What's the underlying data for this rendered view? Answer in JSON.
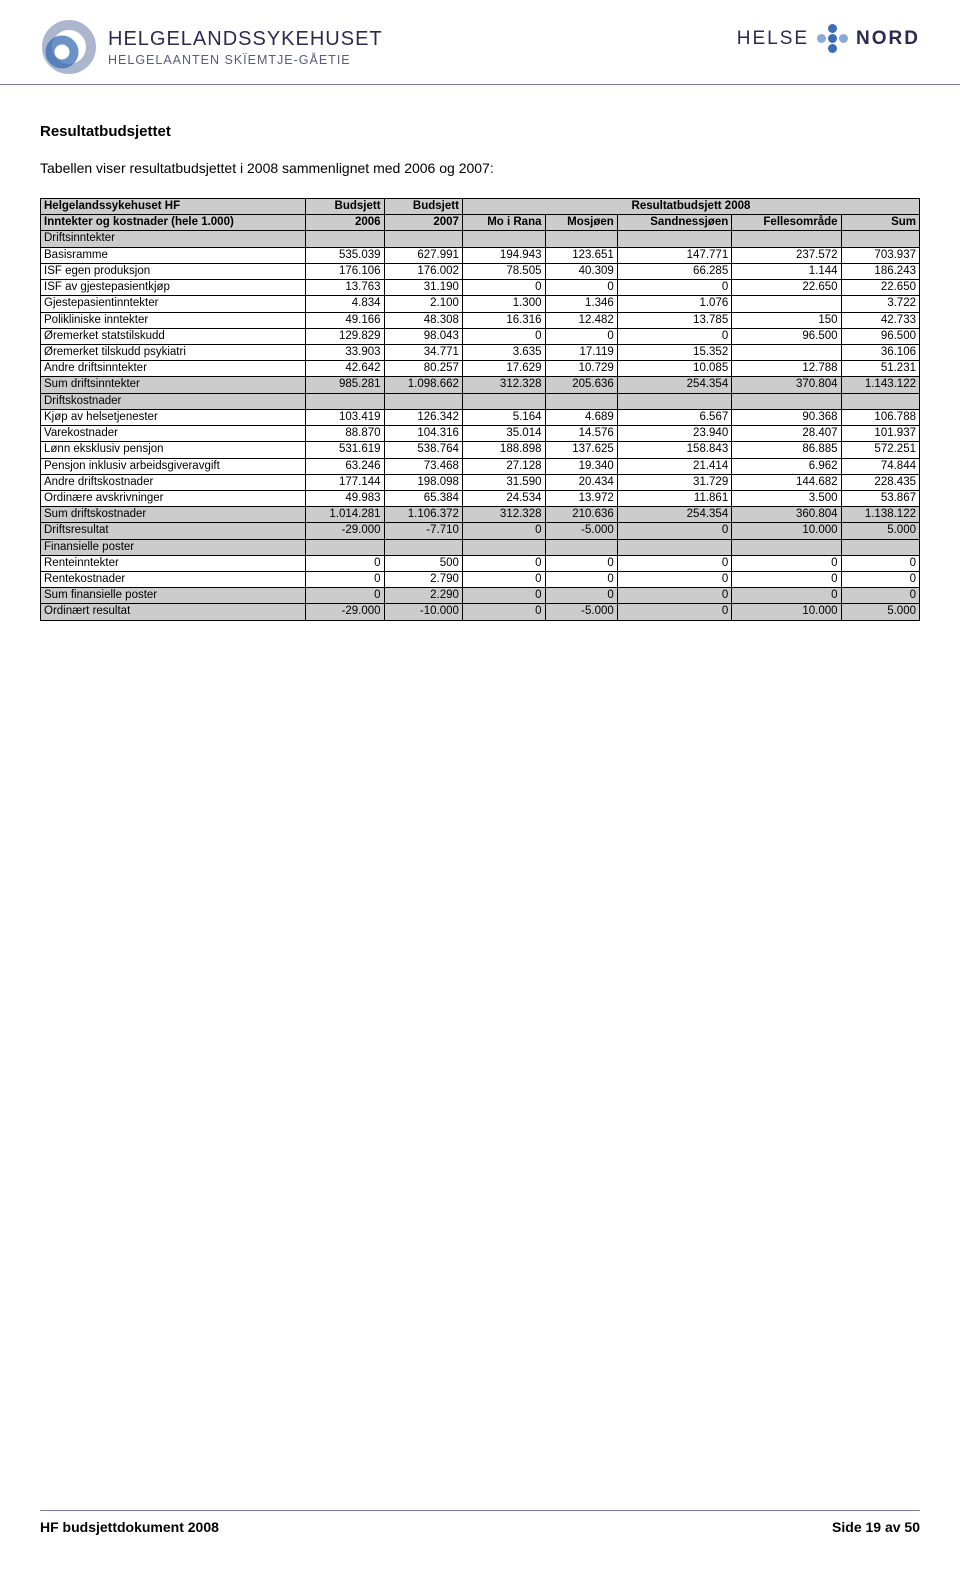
{
  "header": {
    "logo_title": "HELGELANDSSYKEHUSET",
    "logo_sub": "HELGELAANTEN SKÏEMTJE-GÅETIE",
    "helse": "HELSE",
    "nord": "NORD"
  },
  "heading": "Resultatbudsjettet",
  "intro": "Tabellen viser resultatbudsjettet i 2008 sammenlignet med 2006 og 2007:",
  "table": {
    "h1_label": "Helgelandssykehuset HF",
    "h1_b1": "Budsjett",
    "h1_b2": "Budsjett",
    "h1_span": "Resultatbudsjett 2008",
    "h2_label": "Inntekter og kostnader (hele 1.000)",
    "h2_c1": "2006",
    "h2_c2": "2007",
    "h2_c3": "Mo i Rana",
    "h2_c4": "Mosjøen",
    "h2_c5": "Sandnessjøen",
    "h2_c6": "Fellesområde",
    "h2_c7": "Sum",
    "sections": {
      "driftinn": "Driftsinntekter",
      "driftkost": "Driftskostnader",
      "finposter": "Finansielle poster"
    },
    "rows": [
      {
        "label": "Basisramme",
        "v": [
          "535.039",
          "627.991",
          "194.943",
          "123.651",
          "147.771",
          "237.572",
          "703.937"
        ]
      },
      {
        "label": "ISF egen produksjon",
        "v": [
          "176.106",
          "176.002",
          "78.505",
          "40.309",
          "66.285",
          "1.144",
          "186.243"
        ]
      },
      {
        "label": "ISF av gjestepasientkjøp",
        "v": [
          "13.763",
          "31.190",
          "0",
          "0",
          "0",
          "22.650",
          "22.650"
        ]
      },
      {
        "label": "Gjestepasientinntekter",
        "v": [
          "4.834",
          "2.100",
          "1.300",
          "1.346",
          "1.076",
          "",
          "3.722"
        ]
      },
      {
        "label": "Polikliniske inntekter",
        "v": [
          "49.166",
          "48.308",
          "16.316",
          "12.482",
          "13.785",
          "150",
          "42.733"
        ]
      },
      {
        "label": "Øremerket statstilskudd",
        "v": [
          "129.829",
          "98.043",
          "0",
          "0",
          "0",
          "96.500",
          "96.500"
        ]
      },
      {
        "label": "Øremerket tilskudd psykiatri",
        "v": [
          "33.903",
          "34.771",
          "3.635",
          "17.119",
          "15.352",
          "",
          "36.106"
        ]
      },
      {
        "label": "Andre driftsinntekter",
        "v": [
          "42.642",
          "80.257",
          "17.629",
          "10.729",
          "10.085",
          "12.788",
          "51.231"
        ]
      }
    ],
    "sum_driftinn": {
      "label": "Sum driftsinntekter",
      "v": [
        "985.281",
        "1.098.662",
        "312.328",
        "205.636",
        "254.354",
        "370.804",
        "1.143.122"
      ]
    },
    "rows2": [
      {
        "label": "Kjøp av helsetjenester",
        "v": [
          "103.419",
          "126.342",
          "5.164",
          "4.689",
          "6.567",
          "90.368",
          "106.788"
        ]
      },
      {
        "label": "Varekostnader",
        "v": [
          "88.870",
          "104.316",
          "35.014",
          "14.576",
          "23.940",
          "28.407",
          "101.937"
        ]
      },
      {
        "label": "Lønn eksklusiv pensjon",
        "v": [
          "531.619",
          "538.764",
          "188.898",
          "137.625",
          "158.843",
          "86.885",
          "572.251"
        ]
      },
      {
        "label": "Pensjon inklusiv arbeidsgiveravgift",
        "v": [
          "63.246",
          "73.468",
          "27.128",
          "19.340",
          "21.414",
          "6.962",
          "74.844"
        ]
      },
      {
        "label": "Andre driftskostnader",
        "v": [
          "177.144",
          "198.098",
          "31.590",
          "20.434",
          "31.729",
          "144.682",
          "228.435"
        ]
      },
      {
        "label": "Ordinære avskrivninger",
        "v": [
          "49.983",
          "65.384",
          "24.534",
          "13.972",
          "11.861",
          "3.500",
          "53.867"
        ]
      }
    ],
    "sum_driftkost": {
      "label": "Sum driftskostnader",
      "v": [
        "1.014.281",
        "1.106.372",
        "312.328",
        "210.636",
        "254.354",
        "360.804",
        "1.138.122"
      ]
    },
    "driftsresultat": {
      "label": "Driftsresultat",
      "v": [
        "-29.000",
        "-7.710",
        "0",
        "-5.000",
        "0",
        "10.000",
        "5.000"
      ]
    },
    "rows3": [
      {
        "label": "Renteinntekter",
        "v": [
          "0",
          "500",
          "0",
          "0",
          "0",
          "0",
          "0"
        ]
      },
      {
        "label": "Rentekostnader",
        "v": [
          "0",
          "2.790",
          "0",
          "0",
          "0",
          "0",
          "0"
        ]
      }
    ],
    "sum_fin": {
      "label": "Sum finansielle poster",
      "v": [
        "0",
        "2.290",
        "0",
        "0",
        "0",
        "0",
        "0"
      ]
    },
    "ord_res": {
      "label": "Ordinært resultat",
      "v": [
        "-29.000",
        "-10.000",
        "0",
        "-5.000",
        "0",
        "10.000",
        "5.000"
      ]
    }
  },
  "footer": {
    "left": "HF budsjettdokument 2008",
    "right": "Side 19 av 50"
  },
  "colors": {
    "header_grey": "#cccccc",
    "border": "#000000",
    "page_bg": "#ffffff",
    "rule": "#7a7a9a",
    "logo_dark": "#2b2b50",
    "dot_blue": "#3b6db4",
    "dot_light": "#8aaad4"
  }
}
